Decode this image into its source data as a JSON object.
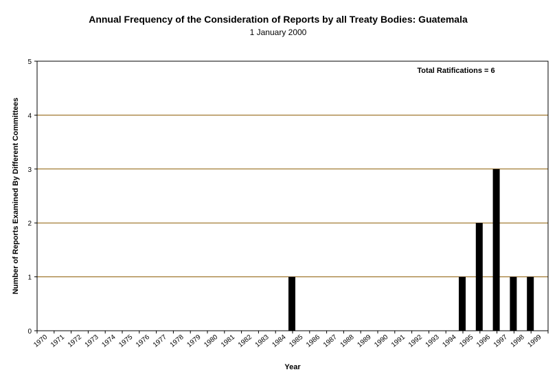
{
  "chart_data": {
    "type": "bar",
    "title": "Annual Frequency of the Consideration of Reports by all Treaty Bodies: Guatemala",
    "subtitle": "1 January 2000",
    "xlabel": "Year",
    "ylabel": "Number of Reports Examined By Different Committees",
    "annotation": "Total Ratifications = 6",
    "categories": [
      "1970",
      "1971",
      "1972",
      "1973",
      "1974",
      "1975",
      "1976",
      "1977",
      "1978",
      "1979",
      "1980",
      "1981",
      "1982",
      "1983",
      "1984",
      "1985",
      "1986",
      "1987",
      "1988",
      "1989",
      "1990",
      "1991",
      "1992",
      "1993",
      "1994",
      "1995",
      "1996",
      "1997",
      "1998",
      "1999"
    ],
    "values": [
      0,
      0,
      0,
      0,
      0,
      0,
      0,
      0,
      0,
      0,
      0,
      0,
      0,
      0,
      1,
      0,
      0,
      0,
      0,
      0,
      0,
      0,
      0,
      0,
      1,
      2,
      3,
      1,
      1,
      0
    ],
    "ylim": [
      0,
      5
    ],
    "yticks": [
      0,
      1,
      2,
      3,
      4,
      5
    ],
    "grid": true,
    "colors": {
      "bar": "#000000",
      "gridline": "#8b5a00",
      "frame": "#000000"
    }
  }
}
